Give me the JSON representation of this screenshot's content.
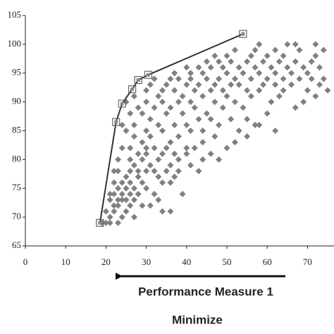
{
  "chart_data": {
    "type": "scatter",
    "xlabel": "Performance Measure 1",
    "annotation": "Minimize",
    "xlim": [
      0,
      76.5
    ],
    "ylim": [
      65,
      105
    ],
    "xticks": [
      0,
      10,
      20,
      30,
      40,
      50,
      60,
      70
    ],
    "yticks": [
      65,
      70,
      75,
      80,
      85,
      90,
      95,
      100,
      105
    ],
    "grid": false,
    "series": [
      {
        "color": "#808080",
        "marker": "diamond",
        "x": [
          19,
          20,
          21,
          23,
          21,
          24,
          27,
          20,
          22,
          25,
          34,
          36,
          22,
          23,
          26,
          29,
          31,
          21,
          23,
          24,
          25,
          27,
          33,
          21,
          22,
          24,
          26,
          28,
          32,
          39,
          23,
          25,
          27,
          30,
          22,
          24,
          26,
          29,
          34,
          36,
          25,
          28,
          33,
          37,
          22,
          23,
          26,
          28,
          30,
          32,
          35,
          38,
          43,
          27,
          31,
          36,
          41,
          23,
          26,
          29,
          33,
          38,
          44,
          48,
          28,
          30,
          34,
          37,
          40,
          46,
          24,
          26,
          30,
          32,
          35,
          40,
          42,
          50,
          29,
          36,
          44,
          52,
          27,
          31,
          38,
          47,
          55,
          25,
          30,
          34,
          41,
          44,
          53,
          62,
          24,
          27,
          33,
          37,
          40,
          48,
          57,
          58,
          31,
          43,
          46,
          51,
          55,
          26,
          29,
          35,
          39,
          45,
          60,
          28,
          32,
          36,
          42,
          49,
          54,
          67,
          25,
          30,
          34,
          38,
          41,
          47,
          52,
          61,
          69,
          27,
          33,
          39,
          44,
          50,
          56,
          63,
          72,
          30,
          34,
          37,
          42,
          46,
          49,
          55,
          58,
          64,
          70,
          75,
          31,
          35,
          40,
          43,
          47,
          51,
          53,
          59,
          62,
          66,
          73,
          32,
          36,
          38,
          41,
          45,
          48,
          52,
          56,
          60,
          64,
          68,
          71,
          74,
          37,
          41,
          44,
          50,
          54,
          58,
          62,
          66,
          70,
          40,
          43,
          46,
          49,
          53,
          57,
          61,
          65,
          69,
          73,
          45,
          48,
          51,
          55,
          59,
          63,
          67,
          71,
          47,
          50,
          56,
          60,
          64,
          72,
          52,
          57,
          62,
          68,
          74,
          58,
          65,
          67,
          72
        ],
        "values": [
          69,
          69,
          69,
          69,
          70,
          70,
          70,
          71,
          71,
          71,
          71,
          71,
          72,
          72,
          72,
          72,
          72,
          73,
          73,
          73,
          73,
          73,
          73,
          74,
          74,
          74,
          74,
          74,
          74,
          74,
          75,
          75,
          75,
          75,
          76,
          76,
          76,
          76,
          76,
          76,
          77,
          77,
          77,
          77,
          78,
          78,
          78,
          78,
          78,
          78,
          78,
          78,
          78,
          79,
          79,
          79,
          79,
          80,
          80,
          80,
          80,
          80,
          80,
          80,
          81,
          81,
          81,
          81,
          81,
          81,
          82,
          82,
          82,
          82,
          82,
          82,
          82,
          82,
          83,
          83,
          83,
          83,
          84,
          84,
          84,
          84,
          84,
          85,
          85,
          85,
          85,
          85,
          85,
          85,
          86,
          86,
          86,
          86,
          86,
          86,
          86,
          86,
          87,
          87,
          87,
          87,
          87,
          88,
          88,
          88,
          88,
          88,
          88,
          89,
          89,
          89,
          89,
          89,
          89,
          89,
          90,
          90,
          90,
          90,
          90,
          90,
          90,
          90,
          90,
          91,
          91,
          91,
          91,
          91,
          91,
          91,
          91,
          92,
          92,
          92,
          92,
          92,
          92,
          92,
          92,
          92,
          92,
          92,
          93,
          93,
          93,
          93,
          93,
          93,
          93,
          93,
          93,
          93,
          93,
          94,
          94,
          94,
          94,
          94,
          94,
          94,
          94,
          94,
          94,
          94,
          94,
          94,
          95,
          95,
          95,
          95,
          95,
          95,
          95,
          95,
          95,
          96,
          96,
          96,
          96,
          96,
          96,
          96,
          96,
          96,
          96,
          97,
          97,
          97,
          97,
          97,
          97,
          97,
          97,
          98,
          98,
          98,
          98,
          98,
          98,
          99,
          99,
          99,
          99,
          99,
          100,
          100,
          100,
          100
        ]
      },
      {
        "color": "#333333",
        "marker": "square",
        "line": true,
        "x": [
          18.5,
          22.5,
          24,
          26.5,
          28,
          30.5,
          54
        ],
        "values": [
          69,
          86.5,
          89.7,
          92.2,
          93.8,
          94.7,
          101.8
        ]
      }
    ]
  }
}
